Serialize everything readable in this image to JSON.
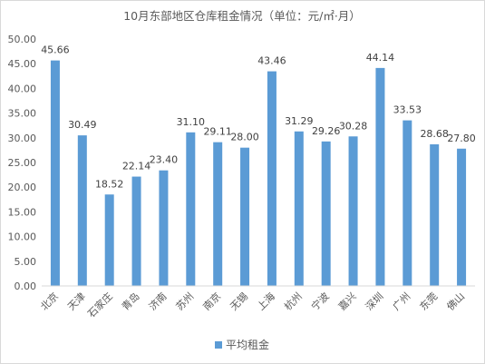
{
  "chart_data": {
    "type": "bar",
    "title": "10月东部地区仓库租金情况（单位：元/㎡·月）",
    "categories": [
      "北京",
      "天津",
      "石家庄",
      "青岛",
      "济南",
      "苏州",
      "南京",
      "无锡",
      "上海",
      "杭州",
      "宁波",
      "嘉兴",
      "深圳",
      "广州",
      "东莞",
      "佛山"
    ],
    "series": [
      {
        "name": "平均租金",
        "values": [
          45.66,
          30.49,
          18.52,
          22.14,
          23.4,
          31.1,
          29.11,
          28.0,
          43.46,
          31.29,
          29.26,
          30.28,
          44.14,
          33.53,
          28.68,
          27.8
        ],
        "labels": [
          "45.66",
          "30.49",
          "18.52",
          "22.14",
          "23.40",
          "31.10",
          "29.11",
          "28.00",
          "43.46",
          "31.29",
          "29.26",
          "30.28",
          "44.14",
          "33.53",
          "28.68",
          "27.80"
        ]
      }
    ],
    "ylim": [
      0,
      50
    ],
    "yticks": [
      "0.00",
      "5.00",
      "10.00",
      "15.00",
      "20.00",
      "25.00",
      "30.00",
      "35.00",
      "40.00",
      "45.00",
      "50.00"
    ],
    "xlabel": "",
    "ylabel": "",
    "grid": false,
    "legend": "bottom",
    "colors": {
      "bar": "#5b9bd5",
      "axis": "#d9d9d9",
      "text": "#595959"
    }
  }
}
